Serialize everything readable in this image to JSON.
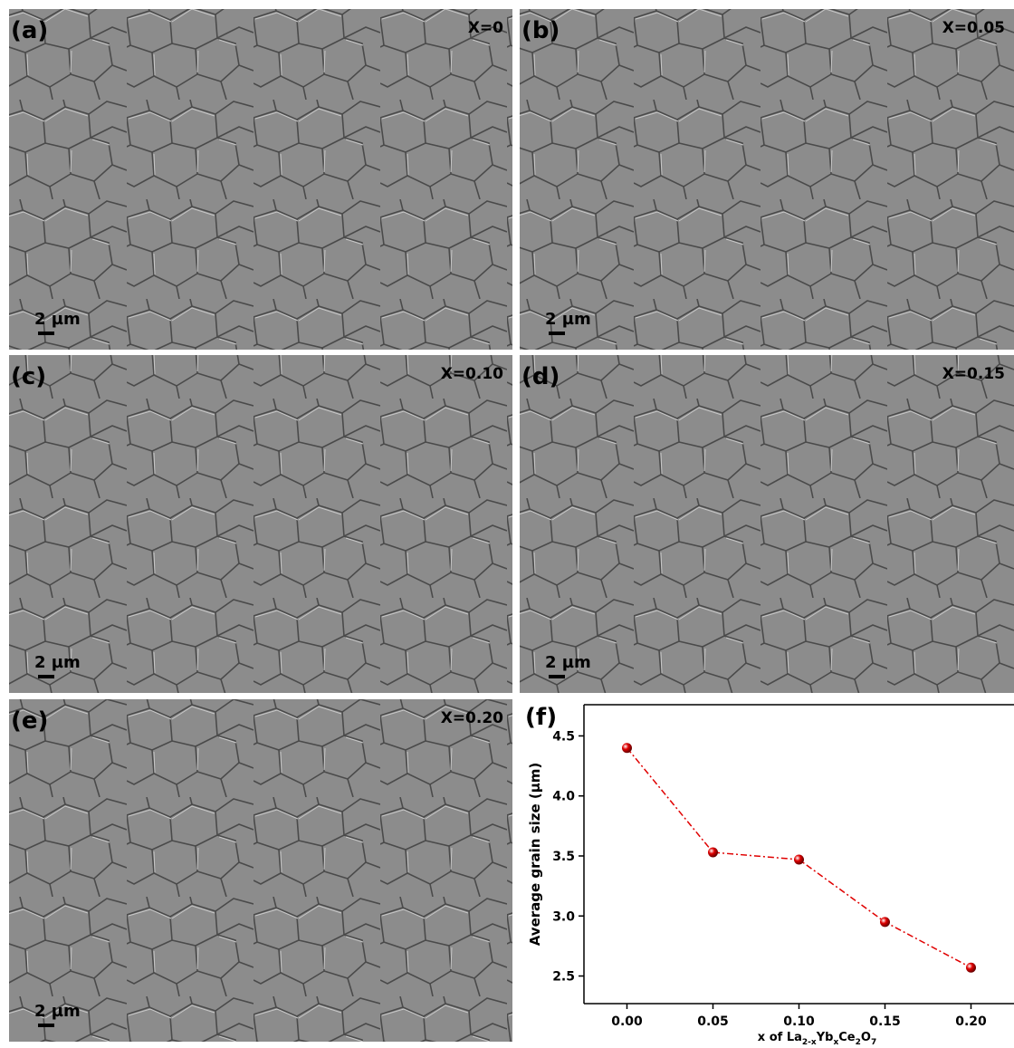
{
  "panels": [
    {
      "label": "(a)",
      "composition": "X=0",
      "scale_bar": "2 µm"
    },
    {
      "label": "(b)",
      "composition": "X=0.05",
      "scale_bar": "2 µm"
    },
    {
      "label": "(c)",
      "composition": "X=0.10",
      "scale_bar": "2 µm"
    },
    {
      "label": "(d)",
      "composition": "X=0.15",
      "scale_bar": "2 µm"
    },
    {
      "label": "(e)",
      "composition": "X=0.20",
      "scale_bar": "2 µm"
    }
  ],
  "chart_data": {
    "type": "line",
    "panel_label": "(f)",
    "ylabel": "Average grain size (μm)",
    "xlabel_parts": [
      "x of La",
      "2-x",
      "Yb",
      "x",
      "Ce",
      "2",
      "O",
      "7"
    ],
    "x": [
      0,
      0.05,
      0.1,
      0.15,
      0.2
    ],
    "series": [
      {
        "color": "#e00000",
        "values": [
          4.4,
          3.53,
          3.47,
          2.95,
          2.57
        ]
      }
    ],
    "xlim": [
      -0.025,
      0.225
    ],
    "ylim": [
      2.27,
      4.76
    ],
    "xticks": [
      {
        "value": 0,
        "label": "0.00"
      },
      {
        "value": 0.05,
        "label": "0.05"
      },
      {
        "value": 0.1,
        "label": "0.10"
      },
      {
        "value": 0.15,
        "label": "0.15"
      },
      {
        "value": 0.2,
        "label": "0.20"
      }
    ],
    "yticks": [
      2.5,
      {
        "value": 3,
        "label": "3.0"
      },
      3.5,
      {
        "value": 4,
        "label": "4.0"
      },
      4.5
    ]
  }
}
